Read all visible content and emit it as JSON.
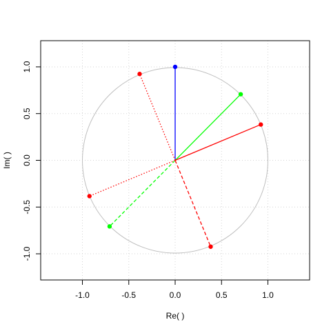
{
  "chart_data": {
    "type": "scatter",
    "title": "",
    "xlabel": "Re( )",
    "ylabel": "Im( )",
    "xlim": [
      -1.45,
      1.45
    ],
    "ylim": [
      -1.28,
      1.28
    ],
    "x_ticks": [
      -1.0,
      -0.5,
      0.0,
      0.5,
      1.0
    ],
    "y_ticks": [
      -1.0,
      -0.5,
      0.0,
      0.5,
      1.0
    ],
    "x_tick_labels": [
      "-1.0",
      "-0.5",
      "0.0",
      "0.5",
      "1.0"
    ],
    "y_tick_labels": [
      "-1.0",
      "-0.5",
      "0.0",
      "0.5",
      "1.0"
    ],
    "grid": true,
    "unit_circle": true,
    "vectors": [
      {
        "x": 0.0,
        "y": 1.0,
        "color": "#0000ff",
        "line": "solid"
      },
      {
        "x": 0.707,
        "y": 0.707,
        "color": "#00ff00",
        "line": "solid"
      },
      {
        "x": -0.707,
        "y": -0.707,
        "color": "#00ff00",
        "line": "dashed"
      },
      {
        "x": 0.924,
        "y": 0.383,
        "color": "#ff0000",
        "line": "solid"
      },
      {
        "x": 0.383,
        "y": -0.924,
        "color": "#ff0000",
        "line": "dashed"
      },
      {
        "x": -0.924,
        "y": -0.383,
        "color": "#ff0000",
        "line": "dotted"
      },
      {
        "x": -0.383,
        "y": 0.924,
        "color": "#ff0000",
        "line": "dotted"
      }
    ]
  },
  "colors": {
    "grid": "#d3d3d3",
    "circle": "#bebebe",
    "frame": "#000000"
  }
}
